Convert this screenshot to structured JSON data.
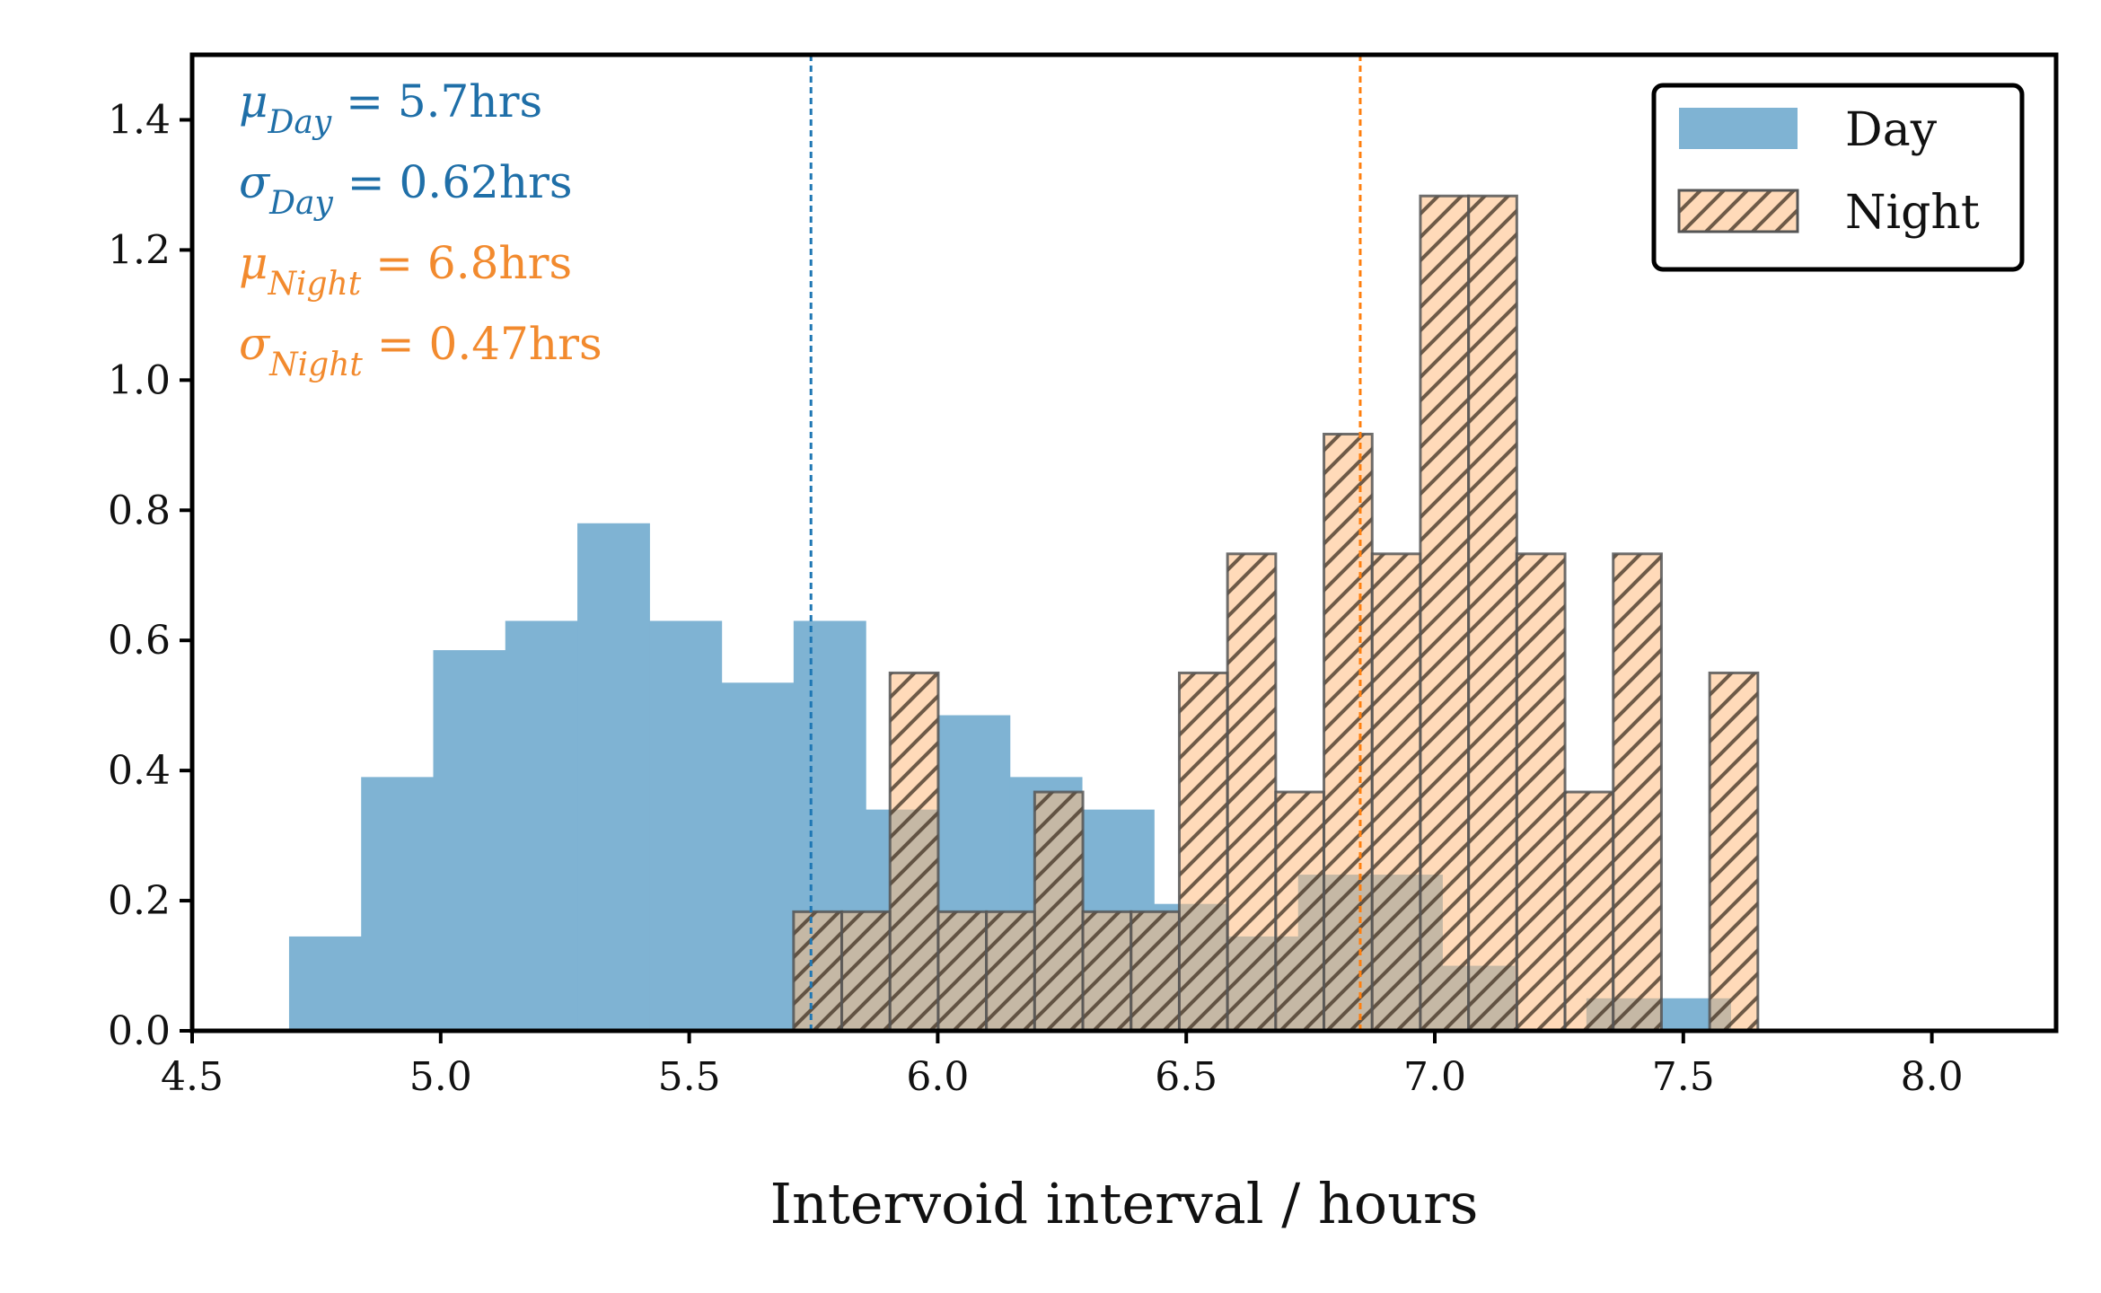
{
  "chart_data": {
    "type": "histogram",
    "title": "",
    "xlabel": "Intervoid interval / hours",
    "ylabel": "",
    "xlim": [
      4.5,
      8.25
    ],
    "ylim": [
      0,
      1.5
    ],
    "xticks": [
      4.5,
      5.0,
      5.5,
      6.0,
      6.5,
      7.0,
      7.5,
      8.0
    ],
    "xtick_labels": [
      "4.5",
      "5.0",
      "5.5",
      "6.0",
      "6.5",
      "7.0",
      "7.5",
      "8.0"
    ],
    "yticks": [
      0.0,
      0.2,
      0.4,
      0.6,
      0.8,
      1.0,
      1.2,
      1.4
    ],
    "ytick_labels": [
      "0.0",
      "0.2",
      "0.4",
      "0.6",
      "0.8",
      "1.0",
      "1.2",
      "1.4"
    ],
    "grid": false,
    "legend_position": "top-right",
    "series": [
      {
        "name": "Day",
        "color": "#7fb3d3",
        "hatch": false,
        "bin_edges": [
          4.695,
          4.84,
          4.985,
          5.13,
          5.275,
          5.42,
          5.565,
          5.71,
          5.855,
          6.0,
          6.145,
          6.29,
          6.435,
          6.58,
          6.725,
          6.87,
          7.015,
          7.16,
          7.305,
          7.45,
          7.595
        ],
        "values": [
          0.145,
          0.39,
          0.585,
          0.63,
          0.78,
          0.63,
          0.535,
          0.63,
          0.34,
          0.485,
          0.39,
          0.34,
          0.195,
          0.145,
          0.24,
          0.24,
          0.1,
          0.0,
          0.05,
          0.05
        ]
      },
      {
        "name": "Night",
        "color": "#ffbb80",
        "edge_color": "#555555",
        "hatch": true,
        "bin_edges": [
          5.71,
          5.807,
          5.904,
          6.001,
          6.098,
          6.195,
          6.292,
          6.389,
          6.486,
          6.583,
          6.68,
          6.777,
          6.874,
          6.971,
          7.068,
          7.165,
          7.262,
          7.359,
          7.456,
          7.553,
          7.65
        ],
        "values": [
          0.183,
          0.183,
          0.55,
          0.183,
          0.183,
          0.367,
          0.183,
          0.183,
          0.55,
          0.733,
          0.367,
          0.917,
          0.733,
          1.283,
          1.283,
          0.733,
          0.367,
          0.733,
          0.0,
          0.55
        ]
      }
    ],
    "reference_lines": [
      {
        "series": "Day",
        "x": 5.745,
        "color": "#1f77b4",
        "style": "dashed"
      },
      {
        "series": "Night",
        "x": 6.85,
        "color": "#ff7f0e",
        "style": "dashed"
      }
    ],
    "annotations": [
      {
        "sym": "μ",
        "sub": "Day",
        "rest": " = 5.7hrs",
        "color": "#1f6fa8"
      },
      {
        "sym": "σ",
        "sub": "Day",
        "rest": " = 0.62hrs",
        "color": "#1f6fa8"
      },
      {
        "sym": "μ",
        "sub": "Night",
        "rest": " = 6.8hrs",
        "color": "#f28a2e"
      },
      {
        "sym": "σ",
        "sub": "Night",
        "rest": " = 0.47hrs",
        "color": "#f28a2e"
      }
    ]
  }
}
